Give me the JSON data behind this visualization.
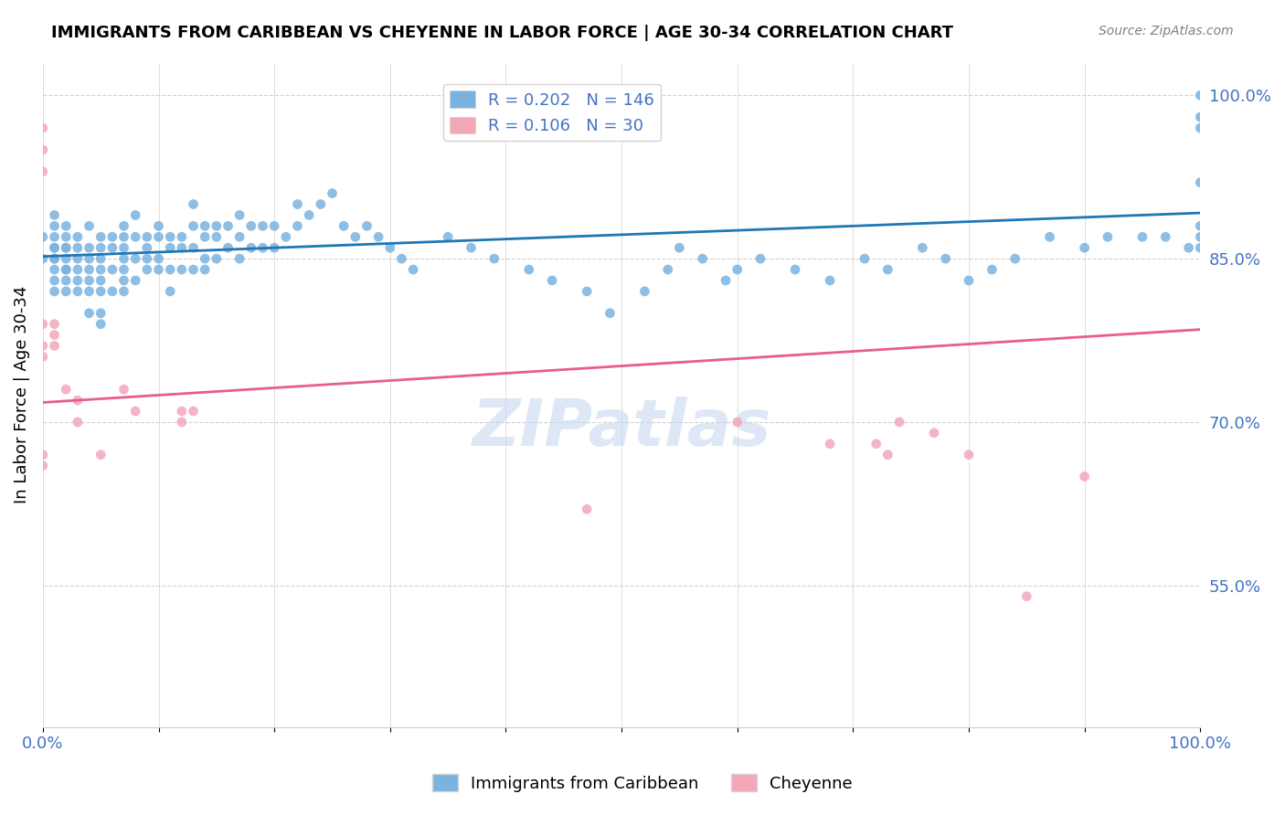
{
  "title": "IMMIGRANTS FROM CARIBBEAN VS CHEYENNE IN LABOR FORCE | AGE 30-34 CORRELATION CHART",
  "source": "Source: ZipAtlas.com",
  "ylabel": "In Labor Force | Age 30-34",
  "xlabel": "",
  "xlim": [
    0.0,
    1.0
  ],
  "ylim": [
    0.42,
    1.03
  ],
  "yticks": [
    0.55,
    0.7,
    0.85,
    1.0
  ],
  "ytick_labels": [
    "55.0%",
    "70.0%",
    "85.0%",
    "100.0%"
  ],
  "xticks": [
    0.0,
    0.1,
    0.2,
    0.3,
    0.4,
    0.5,
    0.6,
    0.7,
    0.8,
    0.9,
    1.0
  ],
  "xtick_labels": [
    "0.0%",
    "",
    "",
    "",
    "",
    "",
    "",
    "",
    "",
    "",
    "100.0%"
  ],
  "blue_color": "#7ab3e0",
  "pink_color": "#f4a7b9",
  "line_blue": "#1f77b4",
  "line_pink": "#e85d8a",
  "text_blue": "#4472c4",
  "R_blue": 0.202,
  "N_blue": 146,
  "R_pink": 0.106,
  "N_pink": 30,
  "blue_scatter_x": [
    0.0,
    0.0,
    0.01,
    0.01,
    0.01,
    0.01,
    0.01,
    0.01,
    0.01,
    0.01,
    0.01,
    0.01,
    0.02,
    0.02,
    0.02,
    0.02,
    0.02,
    0.02,
    0.02,
    0.02,
    0.02,
    0.03,
    0.03,
    0.03,
    0.03,
    0.03,
    0.03,
    0.04,
    0.04,
    0.04,
    0.04,
    0.04,
    0.04,
    0.04,
    0.05,
    0.05,
    0.05,
    0.05,
    0.05,
    0.05,
    0.05,
    0.05,
    0.06,
    0.06,
    0.06,
    0.06,
    0.07,
    0.07,
    0.07,
    0.07,
    0.07,
    0.07,
    0.07,
    0.08,
    0.08,
    0.08,
    0.08,
    0.09,
    0.09,
    0.09,
    0.09,
    0.1,
    0.1,
    0.1,
    0.1,
    0.11,
    0.11,
    0.11,
    0.11,
    0.12,
    0.12,
    0.12,
    0.13,
    0.13,
    0.13,
    0.13,
    0.14,
    0.14,
    0.14,
    0.14,
    0.15,
    0.15,
    0.15,
    0.16,
    0.16,
    0.17,
    0.17,
    0.17,
    0.18,
    0.18,
    0.19,
    0.19,
    0.2,
    0.2,
    0.21,
    0.22,
    0.22,
    0.23,
    0.24,
    0.25,
    0.26,
    0.27,
    0.28,
    0.29,
    0.3,
    0.31,
    0.32,
    0.35,
    0.37,
    0.39,
    0.42,
    0.44,
    0.47,
    0.49,
    0.52,
    0.54,
    0.55,
    0.57,
    0.59,
    0.6,
    0.62,
    0.65,
    0.68,
    0.71,
    0.73,
    0.76,
    0.78,
    0.8,
    0.82,
    0.84,
    0.87,
    0.9,
    0.92,
    0.95,
    0.97,
    0.99,
    1.0,
    1.0,
    1.0,
    1.0,
    1.0,
    1.0,
    1.0
  ],
  "blue_scatter_y": [
    0.87,
    0.85,
    0.88,
    0.86,
    0.85,
    0.84,
    0.87,
    0.89,
    0.86,
    0.85,
    0.83,
    0.82,
    0.88,
    0.86,
    0.85,
    0.84,
    0.83,
    0.87,
    0.86,
    0.84,
    0.82,
    0.87,
    0.85,
    0.84,
    0.86,
    0.82,
    0.83,
    0.88,
    0.86,
    0.85,
    0.84,
    0.83,
    0.82,
    0.8,
    0.87,
    0.86,
    0.85,
    0.84,
    0.83,
    0.82,
    0.8,
    0.79,
    0.87,
    0.86,
    0.84,
    0.82,
    0.88,
    0.87,
    0.86,
    0.85,
    0.84,
    0.83,
    0.82,
    0.89,
    0.87,
    0.85,
    0.83,
    0.87,
    0.86,
    0.85,
    0.84,
    0.88,
    0.87,
    0.85,
    0.84,
    0.87,
    0.86,
    0.84,
    0.82,
    0.87,
    0.86,
    0.84,
    0.9,
    0.88,
    0.86,
    0.84,
    0.88,
    0.87,
    0.85,
    0.84,
    0.88,
    0.87,
    0.85,
    0.88,
    0.86,
    0.89,
    0.87,
    0.85,
    0.88,
    0.86,
    0.88,
    0.86,
    0.88,
    0.86,
    0.87,
    0.9,
    0.88,
    0.89,
    0.9,
    0.91,
    0.88,
    0.87,
    0.88,
    0.87,
    0.86,
    0.85,
    0.84,
    0.87,
    0.86,
    0.85,
    0.84,
    0.83,
    0.82,
    0.8,
    0.82,
    0.84,
    0.86,
    0.85,
    0.83,
    0.84,
    0.85,
    0.84,
    0.83,
    0.85,
    0.84,
    0.86,
    0.85,
    0.83,
    0.84,
    0.85,
    0.87,
    0.86,
    0.87,
    0.87,
    0.87,
    0.86,
    0.87,
    0.86,
    0.92,
    0.88,
    1.0,
    0.98,
    0.97
  ],
  "pink_scatter_x": [
    0.0,
    0.0,
    0.0,
    0.0,
    0.0,
    0.0,
    0.0,
    0.0,
    0.01,
    0.01,
    0.01,
    0.02,
    0.03,
    0.03,
    0.05,
    0.07,
    0.08,
    0.12,
    0.12,
    0.13,
    0.47,
    0.6,
    0.68,
    0.72,
    0.73,
    0.74,
    0.77,
    0.8,
    0.85,
    0.9
  ],
  "pink_scatter_y": [
    0.97,
    0.95,
    0.93,
    0.79,
    0.77,
    0.76,
    0.67,
    0.66,
    0.79,
    0.78,
    0.77,
    0.73,
    0.72,
    0.7,
    0.67,
    0.73,
    0.71,
    0.71,
    0.7,
    0.71,
    0.62,
    0.7,
    0.68,
    0.68,
    0.67,
    0.7,
    0.69,
    0.67,
    0.54,
    0.65
  ],
  "blue_line_x": [
    0.0,
    1.0
  ],
  "blue_line_y": [
    0.852,
    0.892
  ],
  "pink_line_x": [
    0.0,
    1.0
  ],
  "pink_line_y": [
    0.718,
    0.785
  ],
  "watermark": "ZIPatlas",
  "watermark_color": "#c8d8f0",
  "background_color": "#ffffff",
  "grid_color": "#d0d0d0"
}
